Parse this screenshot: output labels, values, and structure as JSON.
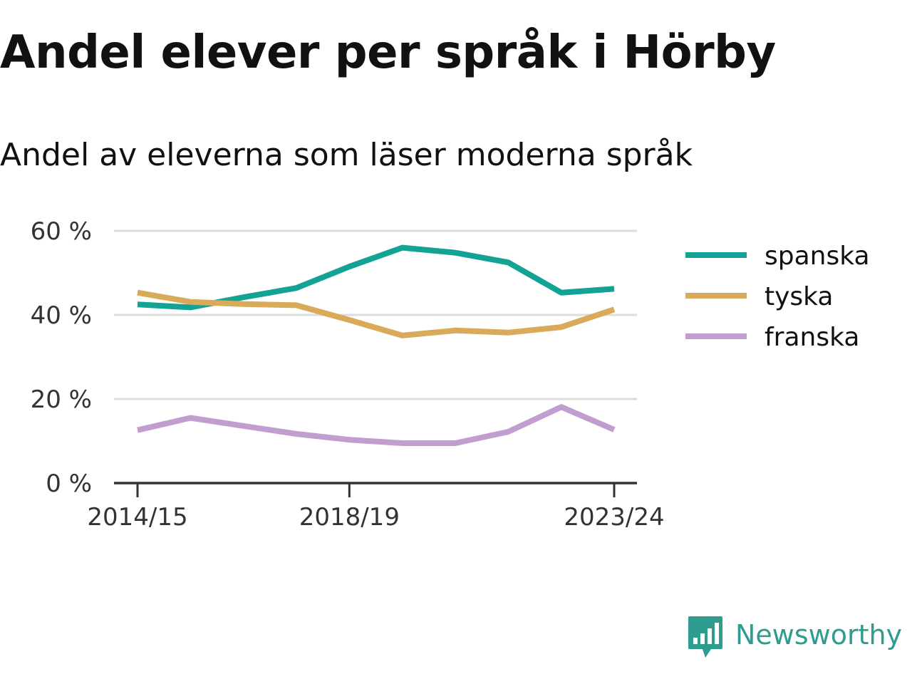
{
  "title": "Andel elever per språk i Hörby",
  "subtitle": "Andel av eleverna som läser moderna språk",
  "brand": {
    "name": "Newsworthy",
    "icon": "bar-chart-speech-bubble-icon",
    "color": "#2e9c8f"
  },
  "chart_data": {
    "type": "line",
    "x": [
      "2014/15",
      "2015/16",
      "2016/17",
      "2017/18",
      "2018/19",
      "2019/20",
      "2020/21",
      "2021/22",
      "2022/23",
      "2023/24"
    ],
    "x_tick_labels": [
      "2014/15",
      "2018/19",
      "2023/24"
    ],
    "y_ticks": [
      0,
      20,
      40,
      60
    ],
    "y_tick_labels": [
      "0 %",
      "20 %",
      "40 %",
      "60 %"
    ],
    "ylim": [
      0,
      60
    ],
    "y_unit": "%",
    "grid": true,
    "legend_position": "right",
    "series": [
      {
        "name": "spanska",
        "color": "#12a394",
        "values": [
          42.5,
          41.8,
          44.2,
          46.4,
          51.5,
          56.0,
          54.8,
          52.5,
          45.3,
          46.2
        ]
      },
      {
        "name": "tyska",
        "color": "#d8aa5a",
        "values": [
          45.3,
          43.1,
          42.6,
          42.3,
          38.8,
          35.1,
          36.3,
          35.8,
          37.1,
          41.3
        ]
      },
      {
        "name": "franska",
        "color": "#c29dcf",
        "values": [
          12.6,
          15.5,
          13.6,
          11.7,
          10.3,
          9.5,
          9.5,
          12.2,
          18.1,
          12.7
        ]
      }
    ]
  }
}
